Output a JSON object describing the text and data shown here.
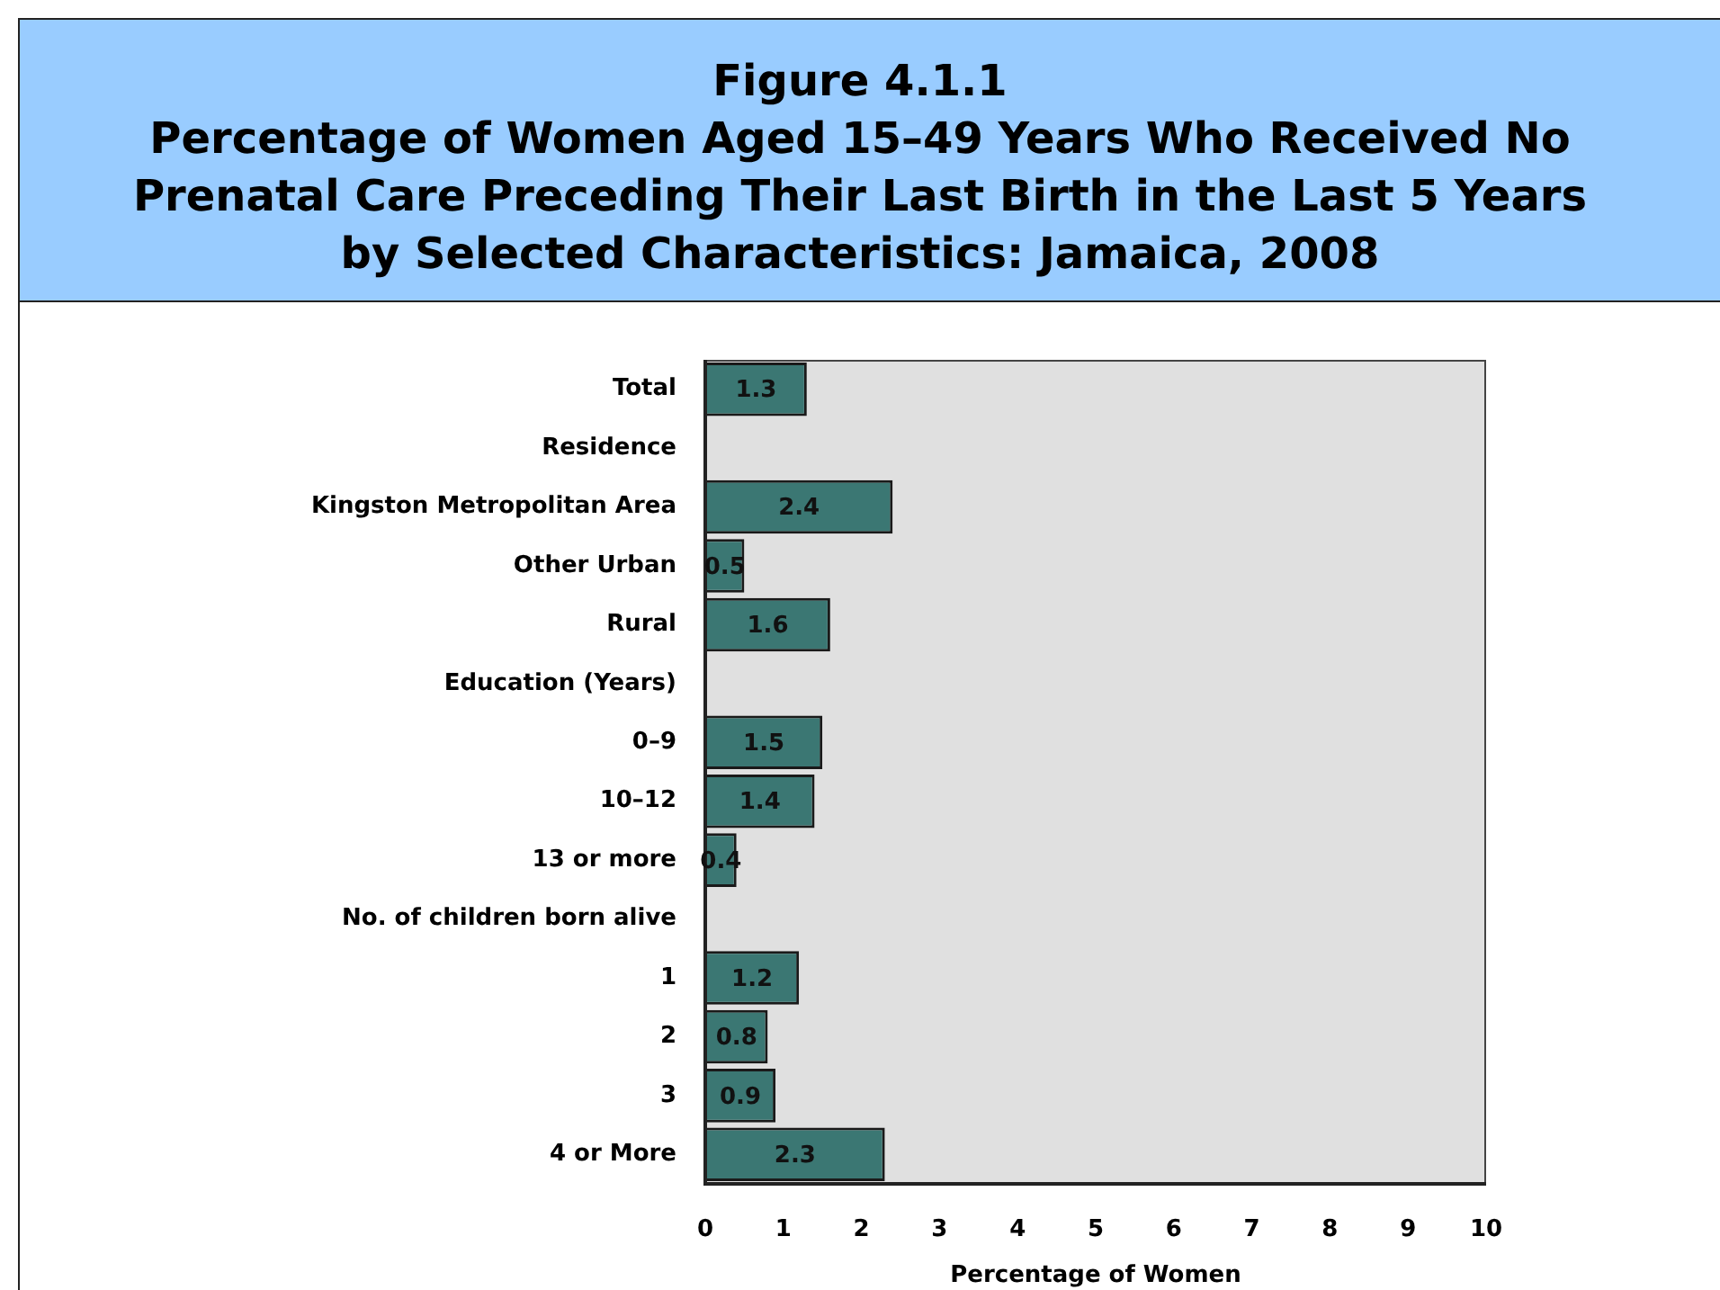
{
  "chart_data": {
    "type": "bar",
    "orientation": "horizontal",
    "title": "Figure 4.1.1",
    "subtitle": "Percentage of Women Aged 15–49 Years Who Received No Prenatal Care Preceding Their Last Birth in the Last 5 Years by Selected Characteristics: Jamaica, 2008",
    "xlabel": "Percentage of Women",
    "categories": [
      "Total",
      "Residence",
      "Kingston Metropolitan Area",
      "Other Urban",
      "Rural",
      "Education (Years)",
      "0–9",
      "10–12",
      "13 or more",
      "No. of children born alive",
      "1",
      "2",
      "3",
      "4 or More"
    ],
    "values": [
      1.3,
      null,
      2.4,
      0.5,
      1.6,
      null,
      1.5,
      1.4,
      0.4,
      null,
      1.2,
      0.8,
      0.9,
      2.3
    ],
    "color": "#3b7773",
    "xlim": [
      0,
      10
    ],
    "xticks": [
      0,
      1,
      2,
      3,
      4,
      5,
      6,
      7,
      8,
      9,
      10
    ],
    "data_labels": true
  }
}
